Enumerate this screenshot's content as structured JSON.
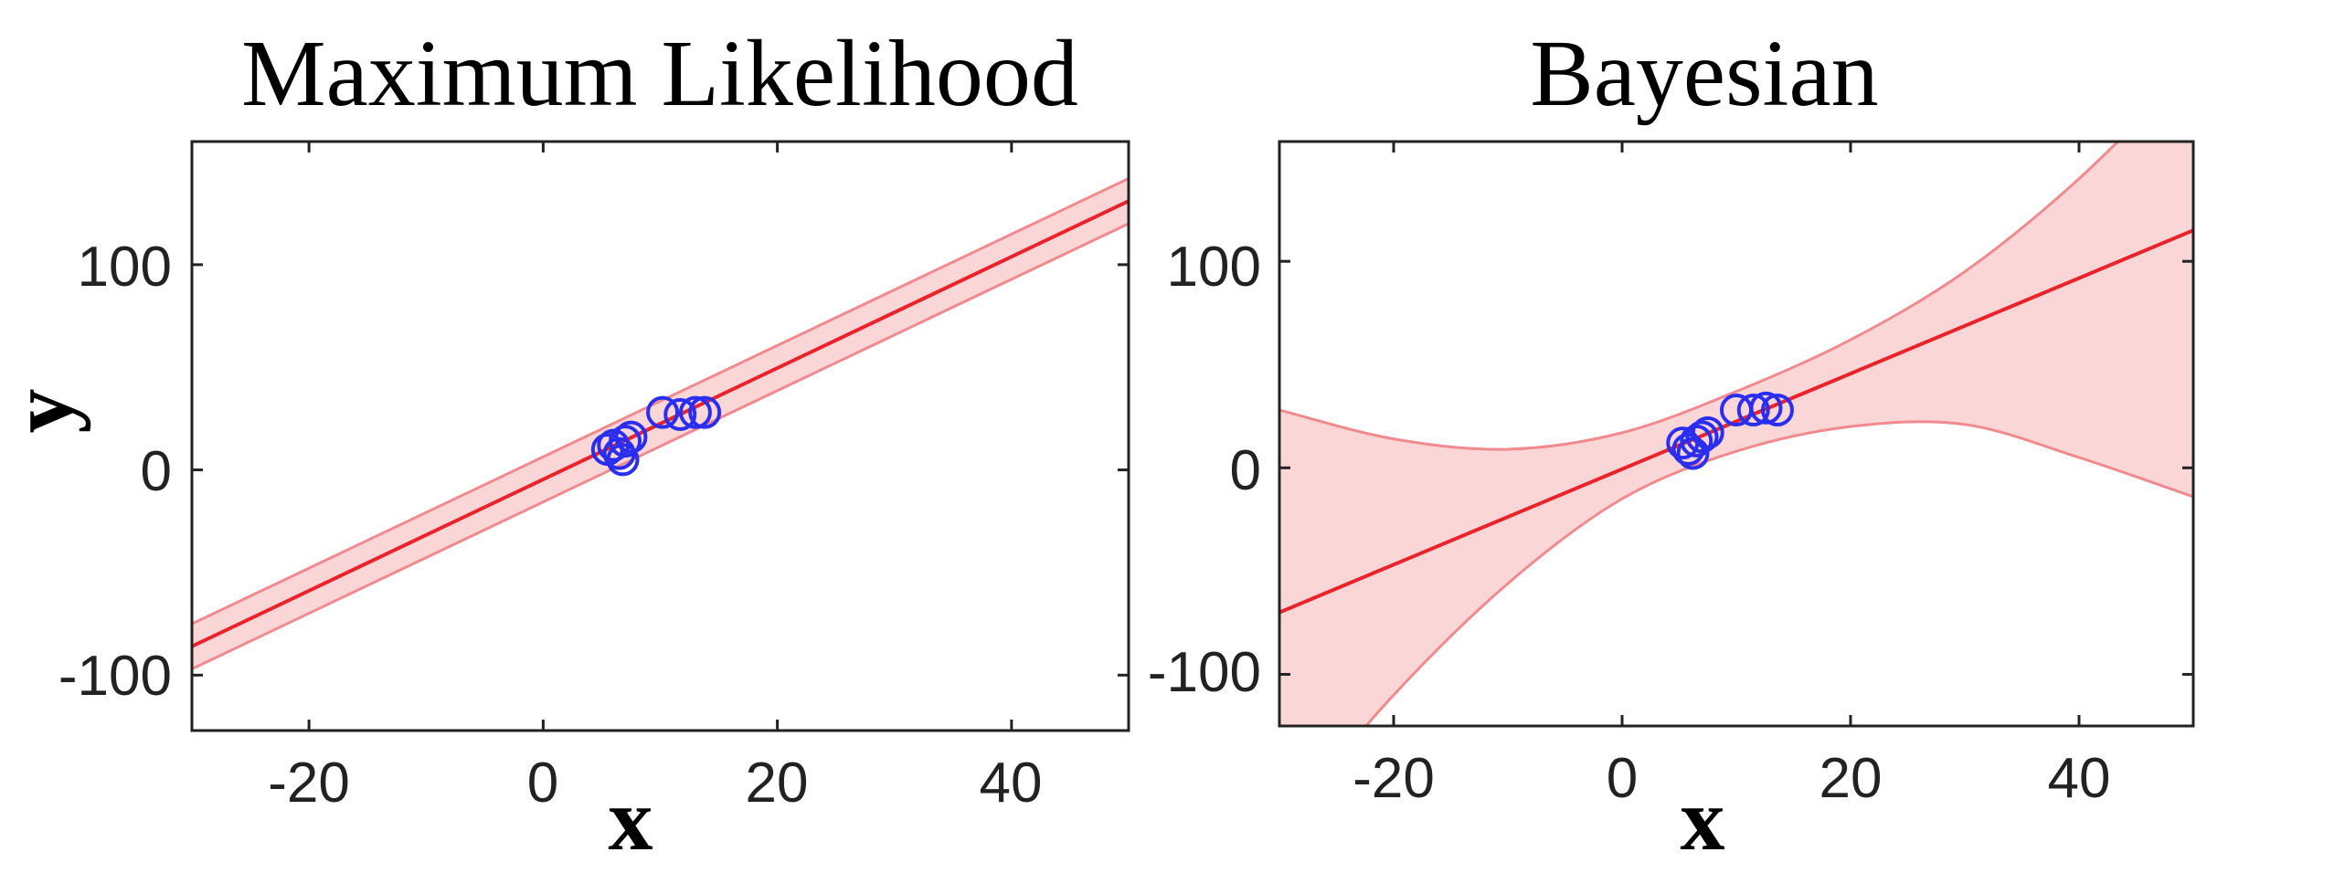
{
  "chart_data": [
    {
      "type": "line",
      "title": "Maximum Likelihood",
      "xlabel": "x",
      "ylabel": "y",
      "xlim": [
        -30,
        50
      ],
      "ylim": [
        -127,
        160
      ],
      "xticks": [
        -20,
        0,
        20,
        40
      ],
      "yticks": [
        -100,
        0,
        100
      ],
      "xtick_labels": [
        "-20",
        "0",
        "20",
        "40"
      ],
      "ytick_labels": [
        "-100",
        "0",
        "100"
      ],
      "fit_line": {
        "x": [
          -30,
          50
        ],
        "y": [
          -86,
          131
        ]
      },
      "band_upper": {
        "x": [
          -30,
          50
        ],
        "y": [
          -75,
          142
        ]
      },
      "band_lower": {
        "x": [
          -30,
          50
        ],
        "y": [
          -97,
          120
        ]
      },
      "points": [
        {
          "x": 5.5,
          "y": 10
        },
        {
          "x": 6.0,
          "y": 12
        },
        {
          "x": 6.5,
          "y": 8
        },
        {
          "x": 6.8,
          "y": 5
        },
        {
          "x": 7.0,
          "y": 14
        },
        {
          "x": 7.5,
          "y": 16
        },
        {
          "x": 10.2,
          "y": 28
        },
        {
          "x": 11.7,
          "y": 27
        },
        {
          "x": 13.0,
          "y": 28
        },
        {
          "x": 13.8,
          "y": 28
        }
      ],
      "colors": {
        "line": "#e8232b",
        "band": "#fbd6d7",
        "band_edge": "#f08a8e",
        "points": "#2a2ef0"
      },
      "grid": false
    },
    {
      "type": "line",
      "title": "Bayesian",
      "xlabel": "x",
      "ylabel": "",
      "xlim": [
        -30,
        50
      ],
      "ylim": [
        -125,
        158
      ],
      "xticks": [
        -20,
        0,
        20,
        40
      ],
      "yticks": [
        -100,
        0,
        100
      ],
      "xtick_labels": [
        "-20",
        "0",
        "20",
        "40"
      ],
      "ytick_labels": [
        "-100",
        "0",
        "100"
      ],
      "fit_line": {
        "x": [
          -30,
          50
        ],
        "y": [
          -70,
          115
        ]
      },
      "band_upper": {
        "x": [
          -30,
          -20,
          -10,
          0,
          10,
          20,
          30,
          40,
          50
        ],
        "y": [
          28,
          14,
          9,
          17,
          37,
          62,
          95,
          140,
          195
        ]
      },
      "band_lower": {
        "x": [
          -30,
          -20,
          -10,
          0,
          10,
          20,
          30,
          40,
          50
        ],
        "y": [
          -175,
          -110,
          -56,
          -15,
          8,
          20,
          21,
          5,
          -14
        ]
      },
      "points": [
        {
          "x": 5.3,
          "y": 12
        },
        {
          "x": 5.8,
          "y": 9
        },
        {
          "x": 6.2,
          "y": 7
        },
        {
          "x": 6.5,
          "y": 13
        },
        {
          "x": 7.0,
          "y": 15
        },
        {
          "x": 7.5,
          "y": 17
        },
        {
          "x": 10.0,
          "y": 28
        },
        {
          "x": 11.5,
          "y": 28
        },
        {
          "x": 12.6,
          "y": 29
        },
        {
          "x": 13.6,
          "y": 28
        }
      ],
      "colors": {
        "line": "#e8232b",
        "band": "#fbd6d7",
        "band_edge": "#f08a8e",
        "points": "#2a2ef0"
      },
      "grid": false
    }
  ]
}
